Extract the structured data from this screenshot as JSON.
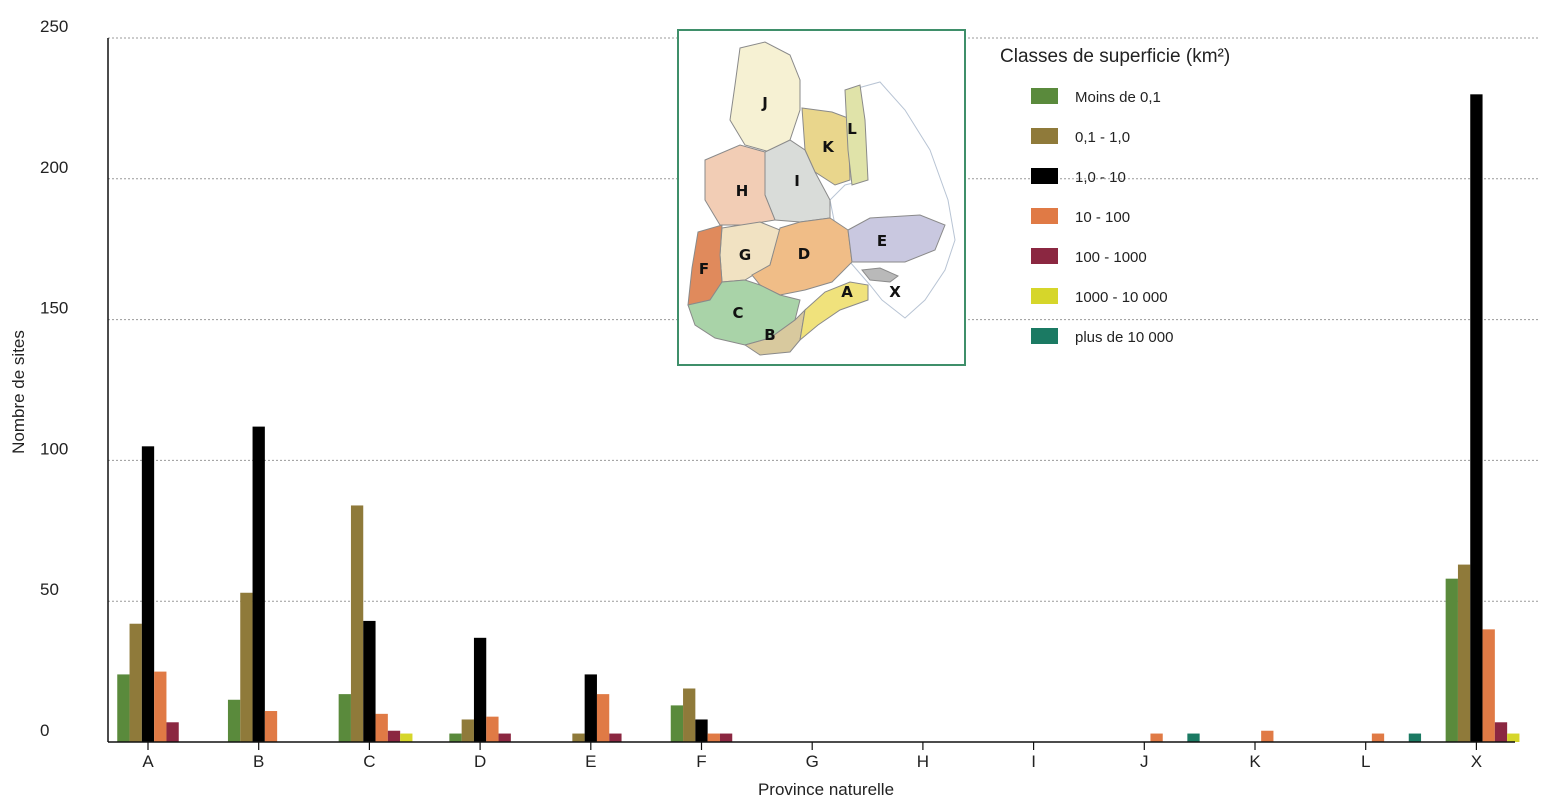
{
  "chart_data": {
    "type": "bar",
    "xlabel": "Province naturelle",
    "ylabel": "Nombre de sites",
    "ylim": [
      0,
      250
    ],
    "yticks": [
      0,
      50,
      100,
      150,
      200,
      250
    ],
    "grid": true,
    "legend_placement": "top-right",
    "legend_title": "Classes de superficie (km²)",
    "categories": [
      "A",
      "B",
      "C",
      "D",
      "E",
      "F",
      "G",
      "H",
      "I",
      "J",
      "K",
      "L",
      "X"
    ],
    "series": [
      {
        "name": "Moins de 0,1",
        "color": "#5a8a3c",
        "values": [
          24,
          15,
          17,
          3,
          0,
          13,
          0,
          0,
          0,
          0,
          0,
          0,
          58
        ]
      },
      {
        "name": "0,1 - 1,0",
        "color": "#8f7a3a",
        "values": [
          42,
          53,
          84,
          8,
          3,
          19,
          0,
          0,
          0,
          0,
          0,
          0,
          63
        ]
      },
      {
        "name": "1,0 - 10",
        "color": "#000000",
        "values": [
          105,
          112,
          43,
          37,
          24,
          8,
          0,
          0,
          0,
          0,
          0,
          0,
          230
        ]
      },
      {
        "name": "10 - 100",
        "color": "#e07a45",
        "values": [
          25,
          11,
          10,
          9,
          17,
          3,
          0,
          0,
          0,
          3,
          4,
          3,
          40
        ]
      },
      {
        "name": "100 - 1000",
        "color": "#8b2741",
        "values": [
          7,
          0,
          4,
          3,
          3,
          3,
          0,
          0,
          0,
          0,
          0,
          0,
          7
        ]
      },
      {
        "name": "1000 - 10 000",
        "color": "#d6d62a",
        "values": [
          0,
          0,
          3,
          0,
          0,
          0,
          0,
          0,
          0,
          0,
          0,
          0,
          3
        ]
      },
      {
        "name": "plus de 10 000",
        "color": "#1b7a63",
        "values": [
          0,
          0,
          0,
          0,
          0,
          0,
          0,
          0,
          0,
          3,
          0,
          3,
          0
        ]
      }
    ]
  },
  "inset_map": {
    "regions": [
      {
        "label": "J",
        "color": "#f6f1d3"
      },
      {
        "label": "K",
        "color": "#e9d68c"
      },
      {
        "label": "L",
        "color": "#e0e3a9"
      },
      {
        "label": "I",
        "color": "#d9dcd9"
      },
      {
        "label": "H",
        "color": "#f2cdb5"
      },
      {
        "label": "G",
        "color": "#f1e2c2"
      },
      {
        "label": "F",
        "color": "#e08a5c"
      },
      {
        "label": "D",
        "color": "#f0bd87"
      },
      {
        "label": "E",
        "color": "#c9c8e0"
      },
      {
        "label": "C",
        "color": "#a9d3a8"
      },
      {
        "label": "B",
        "color": "#d8c99e"
      },
      {
        "label": "A",
        "color": "#f0e27c"
      },
      {
        "label": "X",
        "color": "#ffffff"
      }
    ],
    "frame_color": "#3f8f6a"
  }
}
